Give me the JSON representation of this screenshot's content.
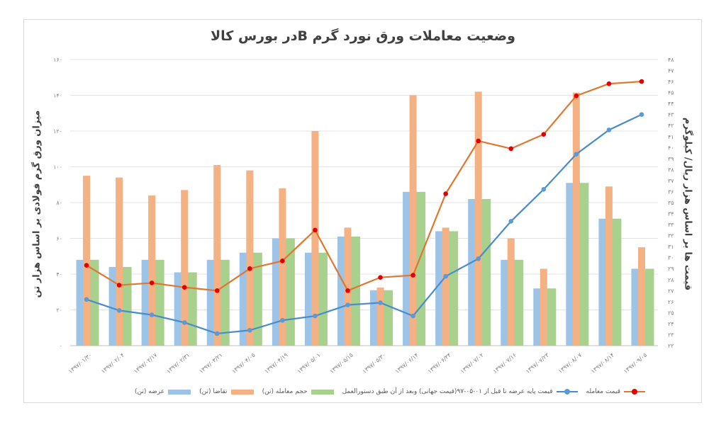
{
  "chart_data": {
    "type": "bar",
    "title": "وضعیت معاملات ورق نورد گرم  Bدر بورس کالا",
    "ylabel": "میزان ورق گرم فولادی بر اساس هزار تن",
    "y2label": "قیمت ها بر اساس هزار ریال/ کیلوگرم",
    "xlabel": "",
    "ylim": [
      0,
      160
    ],
    "y2lim": [
      22,
      48
    ],
    "yticks": [
      "۰",
      "۲۰",
      "۴۰",
      "۶۰",
      "۸۰",
      "۱۰۰",
      "۱۲۰",
      "۱۴۰",
      "۱۶۰"
    ],
    "y2ticks": [
      "۲۲",
      "۲۳",
      "۲۴",
      "۲۵",
      "۲۶",
      "۲۷",
      "۲۸",
      "۲۹",
      "۳۰",
      "۳۱",
      "۳۲",
      "۳۳",
      "۳۴",
      "۳۵",
      "۳۶",
      "۳۷",
      "۳۸",
      "۳۹",
      "۴۰",
      "۴۱",
      "۴۲",
      "۴۳",
      "۴۴",
      "۴۵",
      "۴۶",
      "۴۷",
      "۴۸"
    ],
    "grid": true,
    "legend_position": "bottom",
    "categories": [
      "۱۳۹۷/۰۱/۳۰",
      "۱۳۹۷/۰۲/۰۴",
      "۱۳۹۷/۰۲/۱۷",
      "۱۳۹۷/۰۲/۳۱",
      "۱۳۹۷/۰۳/۲۱",
      "۱۳۹۷/۰۴/۰۵",
      "۱۳۹۷/۰۴/۱۹",
      "۱۳۹۷/۰۵/۰۱",
      "۱۳۹۷/۰۵/۱۵",
      "۱۳۹۷/۰۵/۳۰",
      "۱۳۹۷/۰۶/۱۴",
      "۱۳۹۷/۰۶/۳۴",
      "۱۳۹۷/۰۷/۰۲",
      "۱۳۹۷/۰۷/۱۶",
      "۱۳۹۷/۰۷/۲۳",
      "۱۳۹۷/۰۸/۰۷",
      "۱۳۹۷/۰۸/۱۴",
      "۱۳۹۷/۰۹/۰۵"
    ],
    "series": [
      {
        "name": "عرضه (تن)",
        "type": "bar",
        "axis": "left",
        "color": "#9dc3e6",
        "values": [
          48,
          44,
          48,
          41,
          48,
          52,
          60,
          52,
          61,
          31,
          86,
          64,
          82,
          48,
          32,
          91,
          71,
          43
        ]
      },
      {
        "name": "تقاضا (تن)",
        "type": "bar",
        "axis": "left",
        "color": "#f4b183",
        "values": [
          95,
          94,
          84,
          87,
          101,
          98,
          88,
          120,
          66,
          32.5,
          140,
          66,
          142,
          60,
          43,
          141.5,
          89,
          55
        ]
      },
      {
        "name": "حجم معامله (تن)",
        "type": "bar",
        "axis": "left",
        "color": "#a9d18e",
        "values": [
          48,
          44,
          48,
          41,
          48,
          52,
          60,
          52,
          61,
          31,
          86,
          64,
          82,
          48,
          32,
          91,
          71,
          43
        ]
      },
      {
        "name": "قیمت پایه عرضه تا قبل از ۰۱-۰۵-۹۷(قیمت جهانی) وبعد از آن طبق دستورالعمل",
        "type": "line",
        "axis": "right",
        "color": "#4a8ccb",
        "marker_color": "#5b9bd5",
        "values": [
          26.2,
          25.2,
          24.8,
          24.1,
          23.1,
          23.4,
          24.3,
          24.7,
          25.7,
          25.9,
          24.7,
          28.3,
          29.9,
          33.3,
          36.2,
          39.4,
          41.6,
          43.0
        ]
      },
      {
        "name": "قیمت معامله",
        "type": "line",
        "axis": "right",
        "color": "#e0772e",
        "marker_color": "#e00000",
        "values": [
          29.3,
          27.5,
          27.7,
          27.3,
          27.0,
          29.0,
          29.7,
          32.5,
          27.0,
          28.2,
          28.4,
          35.8,
          40.6,
          39.9,
          41.2,
          44.7,
          45.8,
          46.0
        ]
      }
    ]
  },
  "legend": {
    "supply": "عرضه (تن)",
    "demand": "تقاضا (تن)",
    "volume": "حجم معامله (تن)",
    "base_price": "قیمت پایه عرضه تا قبل از ۰۱-۰۵-۹۷(قیمت جهانی) وبعد از آن طبق دستورالعمل",
    "trade_price": "قیمت معامله"
  }
}
